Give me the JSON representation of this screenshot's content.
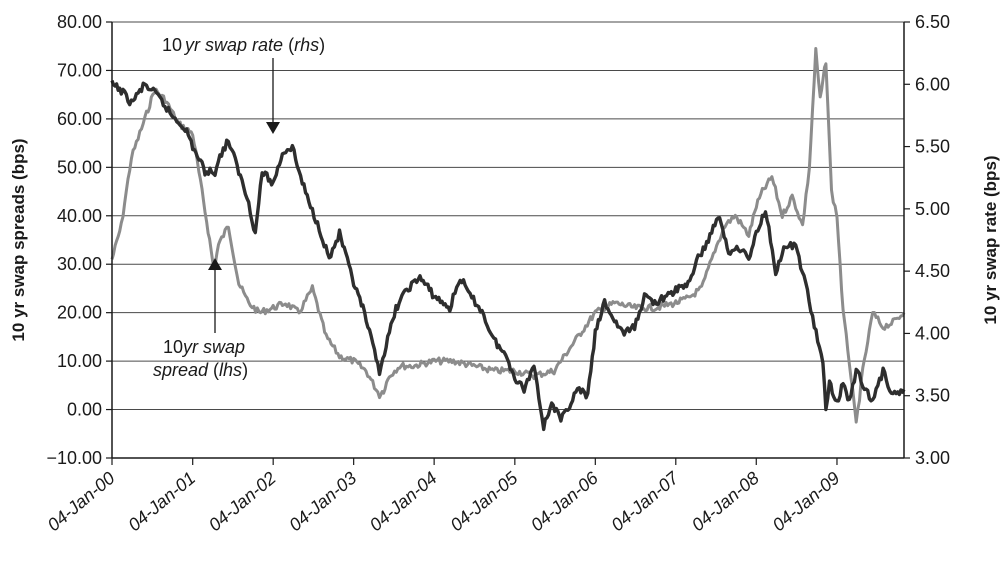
{
  "chart_data": {
    "type": "line",
    "title": "",
    "xlabel": "",
    "ylabel_left": "10 yr swap spreads (bps)",
    "ylabel_right": "10 yr swap rate (bps)",
    "ylim_left": [
      -10,
      80
    ],
    "ylim_right": [
      3.0,
      6.5
    ],
    "xlim": [
      "2000-01-04",
      "2009-11-04"
    ],
    "grid": true,
    "left_ticks": [
      "80.00",
      "70.00",
      "60.00",
      "50.00",
      "40.00",
      "30.00",
      "20.00",
      "10.00",
      "0.00",
      "−10.00"
    ],
    "right_ticks": [
      "6.50",
      "6.00",
      "5.50",
      "5.00",
      "4.50",
      "4.00",
      "3.50",
      "3.00"
    ],
    "x_ticks": [
      "04-Jan-00",
      "04-Jan-01",
      "04-Jan-02",
      "04-Jan-03",
      "04-Jan-04",
      "04-Jan-05",
      "04-Jan-06",
      "04-Jan-07",
      "04-Jan-08",
      "04-Jan-09"
    ],
    "annotations": {
      "rate_label": {
        "prefix": "10",
        "italic": "yr swap rate",
        "open": " (",
        "rhs": "rhs",
        "close": ")"
      },
      "spread_label": {
        "line1_prefix": "10",
        "line1_italic": "yr swap",
        "line2_italic": "spread",
        "line2_open": " (",
        "line2_lhs": "lhs",
        "line2_close": ")"
      }
    },
    "series": [
      {
        "axis": "left",
        "color": "#8c8c8c",
        "x": [
          "2000-01-04",
          "2000-02-15",
          "2000-04-01",
          "2000-06-01",
          "2000-07-15",
          "2000-09-01",
          "2000-11-01",
          "2001-01-04",
          "2001-02-15",
          "2001-03-15",
          "2001-04-10",
          "2001-05-01",
          "2001-06-15",
          "2001-08-01",
          "2001-09-15",
          "2001-11-01",
          "2002-01-04",
          "2002-03-01",
          "2002-05-01",
          "2002-07-01",
          "2002-09-01",
          "2002-11-01",
          "2003-01-04",
          "2003-03-01",
          "2003-05-01",
          "2003-05-20",
          "2003-06-15",
          "2003-08-01",
          "2003-10-01",
          "2004-01-04",
          "2004-04-01",
          "2004-07-01",
          "2004-10-01",
          "2005-01-04",
          "2005-04-01",
          "2005-07-01",
          "2005-10-01",
          "2006-01-04",
          "2006-04-01",
          "2006-07-01",
          "2006-10-01",
          "2007-01-04",
          "2007-03-01",
          "2007-05-01",
          "2007-07-01",
          "2007-08-15",
          "2007-10-01",
          "2007-12-01",
          "2008-01-04",
          "2008-02-01",
          "2008-03-15",
          "2008-05-01",
          "2008-06-15",
          "2008-08-01",
          "2008-09-01",
          "2008-09-30",
          "2008-10-20",
          "2008-11-15",
          "2008-12-10",
          "2009-01-04",
          "2009-02-01",
          "2009-03-01",
          "2009-04-01",
          "2009-05-01",
          "2009-06-15",
          "2009-08-01",
          "2009-09-15",
          "2009-11-04"
        ],
        "values": [
          31,
          38,
          52,
          60,
          66,
          64,
          59,
          57,
          45,
          37,
          29,
          34,
          38,
          26,
          22,
          20,
          21,
          22,
          20,
          25,
          15,
          11,
          10,
          8,
          3,
          4,
          7,
          9,
          9,
          10,
          10,
          9,
          8,
          8,
          7,
          8,
          14,
          20,
          22,
          21,
          21,
          22,
          23,
          25,
          33,
          38,
          40,
          36,
          42,
          45,
          48,
          40,
          44,
          38,
          50,
          74,
          64,
          72,
          45,
          40,
          20,
          10,
          -3,
          8,
          20,
          17,
          18,
          20
        ]
      },
      {
        "axis": "right",
        "color": "#2e2e2e",
        "x": [
          "2000-01-04",
          "2000-02-15",
          "2000-04-01",
          "2000-06-01",
          "2000-08-01",
          "2000-10-01",
          "2000-12-01",
          "2001-01-04",
          "2001-03-01",
          "2001-04-15",
          "2001-05-15",
          "2001-06-15",
          "2001-08-01",
          "2001-09-15",
          "2001-10-15",
          "2001-11-15",
          "2002-01-04",
          "2002-02-15",
          "2002-04-01",
          "2002-05-01",
          "2002-06-15",
          "2002-08-01",
          "2002-09-15",
          "2002-11-01",
          "2003-01-04",
          "2003-02-15",
          "2003-04-01",
          "2003-05-01",
          "2003-06-15",
          "2003-07-15",
          "2003-09-01",
          "2003-11-01",
          "2004-01-04",
          "2004-03-15",
          "2004-05-01",
          "2004-06-15",
          "2004-08-01",
          "2004-10-01",
          "2004-12-01",
          "2005-01-04",
          "2005-02-15",
          "2005-04-01",
          "2005-05-15",
          "2005-06-20",
          "2005-08-01",
          "2005-09-01",
          "2005-10-15",
          "2005-12-01",
          "2006-01-04",
          "2006-02-15",
          "2006-04-01",
          "2006-05-15",
          "2006-07-01",
          "2006-08-15",
          "2006-10-01",
          "2006-12-01",
          "2007-01-04",
          "2007-03-01",
          "2007-04-15",
          "2007-06-01",
          "2007-07-15",
          "2007-09-01",
          "2007-10-15",
          "2007-12-01",
          "2008-01-04",
          "2008-02-15",
          "2008-04-01",
          "2008-05-15",
          "2008-07-01",
          "2008-08-15",
          "2008-10-01",
          "2008-11-01",
          "2008-11-15",
          "2008-12-01",
          "2008-12-20",
          "2009-01-04",
          "2009-02-01",
          "2009-03-01",
          "2009-04-01",
          "2009-05-01",
          "2009-06-15",
          "2009-08-01",
          "2009-09-15",
          "2009-11-04"
        ],
        "values": [
          6.0,
          5.95,
          5.85,
          6.0,
          5.9,
          5.75,
          5.65,
          5.5,
          5.3,
          5.3,
          5.45,
          5.55,
          5.3,
          5.05,
          4.8,
          5.3,
          5.2,
          5.45,
          5.5,
          5.3,
          5.05,
          4.85,
          4.6,
          4.8,
          4.4,
          4.2,
          3.9,
          3.7,
          4.0,
          4.2,
          4.35,
          4.45,
          4.3,
          4.2,
          4.45,
          4.3,
          4.2,
          3.95,
          3.8,
          3.65,
          3.55,
          3.75,
          3.25,
          3.45,
          3.3,
          3.4,
          3.55,
          3.5,
          4.0,
          4.25,
          4.1,
          4.0,
          4.05,
          4.3,
          4.25,
          4.3,
          4.35,
          4.4,
          4.6,
          4.75,
          4.95,
          4.65,
          4.7,
          4.6,
          4.8,
          5.0,
          4.5,
          4.7,
          4.7,
          4.4,
          4.0,
          3.75,
          3.4,
          3.6,
          3.5,
          3.45,
          3.6,
          3.45,
          3.7,
          3.6,
          3.45,
          3.7,
          3.5,
          3.55
        ]
      }
    ]
  }
}
